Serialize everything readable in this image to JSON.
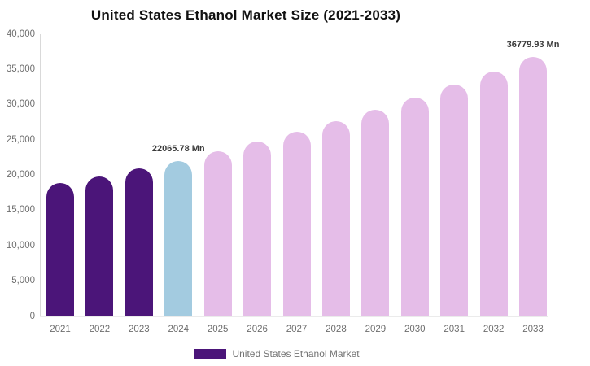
{
  "title": "United States Ethanol Market Size (2021-2033)",
  "legend": {
    "label": "United States Ethanol Market",
    "swatch_color": "#4B1579"
  },
  "colors": {
    "historical_bar": "#4B1579",
    "highlight_bar": "#A3CBE0",
    "forecast_bar": "#E5BDE8",
    "axis_text": "#6e6e6e",
    "title_text": "#111111",
    "data_label_text": "#3a3a3a",
    "axis_line": "#d9d9d9"
  },
  "chart_data": {
    "type": "bar",
    "title": "United States Ethanol Market Size (2021-2033)",
    "categories": [
      "2021",
      "2022",
      "2023",
      "2024",
      "2025",
      "2026",
      "2027",
      "2028",
      "2029",
      "2030",
      "2031",
      "2032",
      "2033"
    ],
    "values": [
      18900,
      19850,
      21000,
      22065.78,
      23400,
      24750,
      26150,
      27700,
      29250,
      31050,
      32850,
      34650,
      36779.93
    ],
    "bar_colors": [
      "#4B1579",
      "#4B1579",
      "#4B1579",
      "#A3CBE0",
      "#E5BDE8",
      "#E5BDE8",
      "#E5BDE8",
      "#E5BDE8",
      "#E5BDE8",
      "#E5BDE8",
      "#E5BDE8",
      "#E5BDE8",
      "#E5BDE8"
    ],
    "data_labels": [
      {
        "index": 3,
        "text": "22065.78 Mn"
      },
      {
        "index": 12,
        "text": "36779.93 Mn"
      }
    ],
    "y_tick_labels": [
      "40,000",
      "35,000",
      "30,000",
      "25,000",
      "20,000",
      "15,000",
      "10,000",
      "5,000",
      "0"
    ],
    "ylim": [
      0,
      40000
    ],
    "xlabel": "",
    "ylabel": "",
    "grid": false,
    "legend_entries": [
      "United States Ethanol Market"
    ],
    "legend_position": "bottom"
  }
}
